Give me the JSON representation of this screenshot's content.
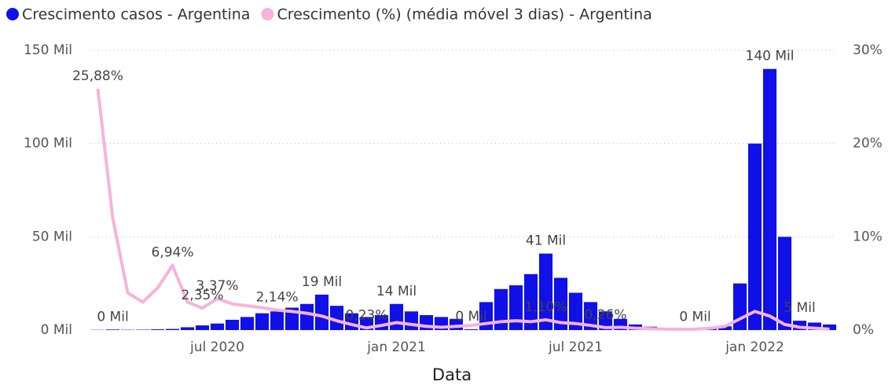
{
  "chart_data": {
    "type": "bar",
    "x_label": "Data",
    "categories": [
      null,
      null,
      null,
      null,
      null,
      null,
      null,
      null,
      "jul 2020",
      null,
      null,
      null,
      null,
      null,
      null,
      null,
      null,
      null,
      null,
      null,
      "jan 2021",
      null,
      null,
      null,
      null,
      null,
      null,
      null,
      null,
      null,
      null,
      null,
      "jul 2021",
      null,
      null,
      null,
      null,
      null,
      null,
      null,
      null,
      null,
      null,
      null,
      "jan 2022",
      null,
      null,
      null,
      null,
      null
    ],
    "series": [
      {
        "name": "Crescimento casos - Argentina",
        "color": "#1010e8",
        "values": [
          100,
          300,
          150,
          200,
          400,
          600,
          1500,
          2500,
          3500,
          5500,
          7000,
          9000,
          10000,
          12000,
          14000,
          19000,
          13000,
          9000,
          7000,
          8000,
          14000,
          10000,
          8000,
          7000,
          6000,
          400,
          15000,
          22000,
          24000,
          30000,
          41000,
          28000,
          20000,
          15000,
          10000,
          6000,
          3000,
          1800,
          1200,
          1000,
          300,
          1500,
          2000,
          25000,
          100000,
          140000,
          50000,
          5000,
          4000,
          3000
        ],
        "value_labels": [
          null,
          "0 Mil",
          null,
          null,
          null,
          null,
          null,
          null,
          null,
          null,
          null,
          null,
          null,
          null,
          null,
          "19 Mil",
          null,
          null,
          null,
          null,
          "14 Mil",
          null,
          null,
          null,
          null,
          "0 Mil",
          null,
          null,
          null,
          null,
          "41 Mil",
          null,
          null,
          null,
          null,
          null,
          null,
          null,
          null,
          null,
          "0 Mil",
          null,
          null,
          null,
          null,
          "140 Mil",
          null,
          "5 Mil",
          null,
          null
        ]
      },
      {
        "name": "Crescimento (%) (média móvel 3 dias) - Argentina",
        "color": "#f7b3d9",
        "axis": "y2",
        "type": "line",
        "values": [
          25.88,
          12,
          4,
          3,
          4.5,
          6.94,
          3.0,
          2.35,
          3.37,
          2.8,
          2.6,
          2.4,
          2.14,
          2.0,
          1.8,
          1.5,
          1.0,
          0.6,
          0.23,
          0.5,
          0.8,
          0.6,
          0.4,
          0.3,
          0.4,
          0.5,
          0.7,
          0.9,
          1.0,
          0.9,
          1.1,
          0.8,
          0.7,
          0.5,
          0.26,
          0.3,
          0.2,
          0.15,
          0.1,
          0.1,
          0.1,
          0.2,
          0.4,
          1.2,
          2.0,
          1.5,
          0.6,
          0.3,
          0.2,
          0.1
        ],
        "value_labels": [
          "25,88%",
          null,
          null,
          null,
          null,
          "6,94%",
          null,
          "2,35%",
          "3,37%",
          null,
          null,
          null,
          "2,14%",
          null,
          null,
          null,
          null,
          null,
          "0,23%",
          null,
          null,
          null,
          null,
          null,
          null,
          null,
          null,
          null,
          null,
          null,
          "1,10%",
          null,
          null,
          null,
          "0,26%",
          null,
          null,
          null,
          null,
          null,
          null,
          null,
          null,
          null,
          null,
          null,
          null,
          null,
          null,
          null
        ]
      }
    ],
    "ylim": [
      0,
      150000
    ],
    "yticks": [
      {
        "value": 0,
        "label": "0 Mil"
      },
      {
        "value": 50000,
        "label": "50 Mil"
      },
      {
        "value": 100000,
        "label": "100 Mil"
      },
      {
        "value": 150000,
        "label": "150 Mil"
      }
    ],
    "y2lim": [
      0,
      30
    ],
    "y2ticks": [
      {
        "value": 0,
        "label": "0%"
      },
      {
        "value": 10,
        "label": "10%"
      },
      {
        "value": 20,
        "label": "20%"
      },
      {
        "value": 30,
        "label": "30%"
      }
    ],
    "grid": true
  }
}
